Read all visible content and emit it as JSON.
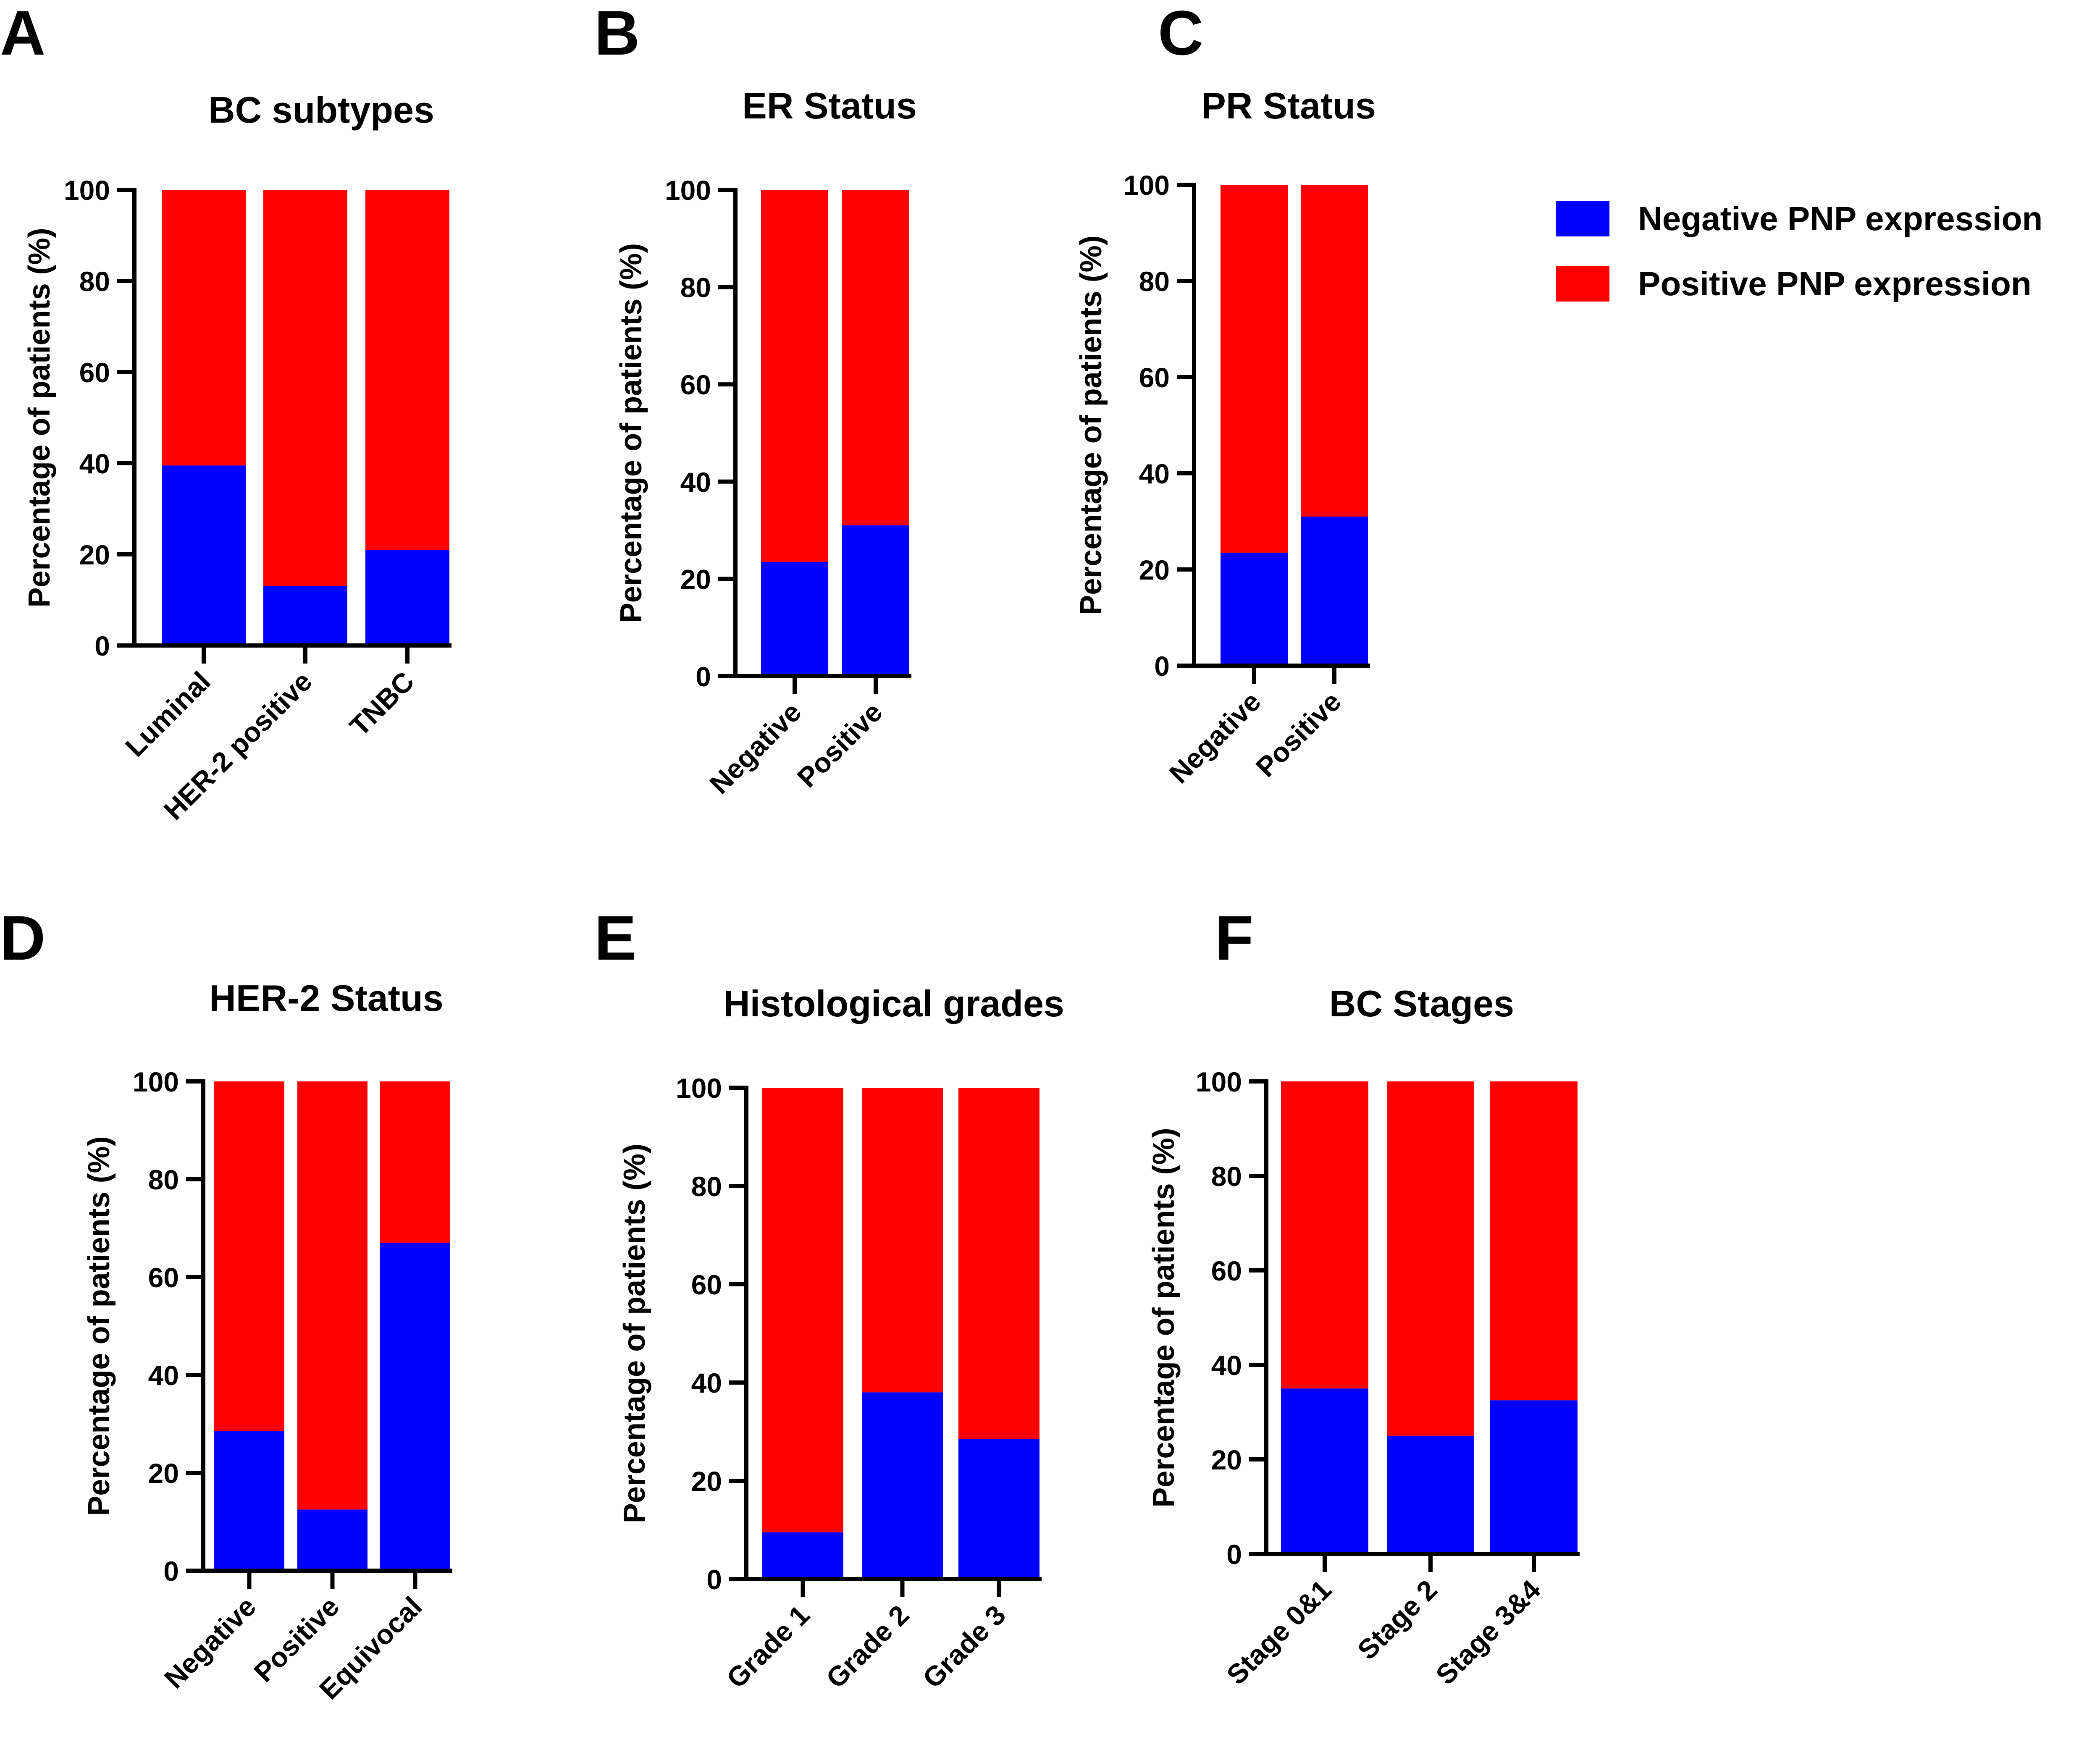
{
  "legend": {
    "items": [
      {
        "label": "Negative PNP expression",
        "color": "#0000FF"
      },
      {
        "label": "Positive PNP expression",
        "color": "#FF0000"
      }
    ]
  },
  "chart_data": [
    {
      "panel": "A",
      "type": "bar",
      "stacked": true,
      "title": "BC subtypes",
      "xlabel": "",
      "ylabel": "Percentage of patients (%)",
      "ylim": [
        0,
        100
      ],
      "yticks": [
        0,
        20,
        40,
        60,
        80,
        100
      ],
      "categories": [
        "Luminal",
        "HER-2 positive",
        "TNBC"
      ],
      "series": [
        {
          "name": "Negative PNP expression",
          "values": [
            39.5,
            13,
            21
          ]
        },
        {
          "name": "Positive PNP expression",
          "values": [
            60.5,
            87,
            79
          ]
        }
      ]
    },
    {
      "panel": "B",
      "type": "bar",
      "stacked": true,
      "title": "ER Status",
      "xlabel": "",
      "ylabel": "Percentage of patients (%)",
      "ylim": [
        0,
        100
      ],
      "yticks": [
        0,
        20,
        40,
        60,
        80,
        100
      ],
      "categories": [
        "Negative",
        "Positive"
      ],
      "series": [
        {
          "name": "Negative PNP expression",
          "values": [
            23.5,
            31
          ]
        },
        {
          "name": "Positive PNP expression",
          "values": [
            76.5,
            69
          ]
        }
      ]
    },
    {
      "panel": "C",
      "type": "bar",
      "stacked": true,
      "title": "PR Status",
      "xlabel": "",
      "ylabel": "Percentage of patients (%)",
      "ylim": [
        0,
        100
      ],
      "yticks": [
        0,
        20,
        40,
        60,
        80,
        100
      ],
      "categories": [
        "Negative",
        "Positive"
      ],
      "series": [
        {
          "name": "Negative PNP expression",
          "values": [
            23.5,
            31
          ]
        },
        {
          "name": "Positive PNP expression",
          "values": [
            76.5,
            69
          ]
        }
      ]
    },
    {
      "panel": "D",
      "type": "bar",
      "stacked": true,
      "title": "HER-2 Status",
      "xlabel": "",
      "ylabel": "Percentage of patients (%)",
      "ylim": [
        0,
        100
      ],
      "yticks": [
        0,
        20,
        40,
        60,
        80,
        100
      ],
      "categories": [
        "Negative",
        "Positive",
        "Equivocal"
      ],
      "series": [
        {
          "name": "Negative PNP expression",
          "values": [
            28.5,
            12.5,
            67
          ]
        },
        {
          "name": "Positive PNP expression",
          "values": [
            71.5,
            87.5,
            33
          ]
        }
      ]
    },
    {
      "panel": "E",
      "type": "bar",
      "stacked": true,
      "title": "Histological grades",
      "xlabel": "",
      "ylabel": "Percentage of patients (%)",
      "ylim": [
        0,
        100
      ],
      "yticks": [
        0,
        20,
        40,
        60,
        80,
        100
      ],
      "categories": [
        "Grade 1",
        "Grade 2",
        "Grade 3"
      ],
      "series": [
        {
          "name": "Negative PNP expression",
          "values": [
            9.5,
            38,
            28.5
          ]
        },
        {
          "name": "Positive PNP expression",
          "values": [
            90.5,
            62,
            71.5
          ]
        }
      ]
    },
    {
      "panel": "F",
      "type": "bar",
      "stacked": true,
      "title": "BC Stages",
      "xlabel": "",
      "ylabel": "Percentage of patients (%)",
      "ylim": [
        0,
        100
      ],
      "yticks": [
        0,
        20,
        40,
        60,
        80,
        100
      ],
      "categories": [
        "Stage 0&1",
        "Stage 2",
        "Stage 3&4"
      ],
      "series": [
        {
          "name": "Negative PNP expression",
          "values": [
            35,
            25,
            32.5
          ]
        },
        {
          "name": "Positive PNP expression",
          "values": [
            65,
            75,
            67.5
          ]
        }
      ]
    }
  ]
}
